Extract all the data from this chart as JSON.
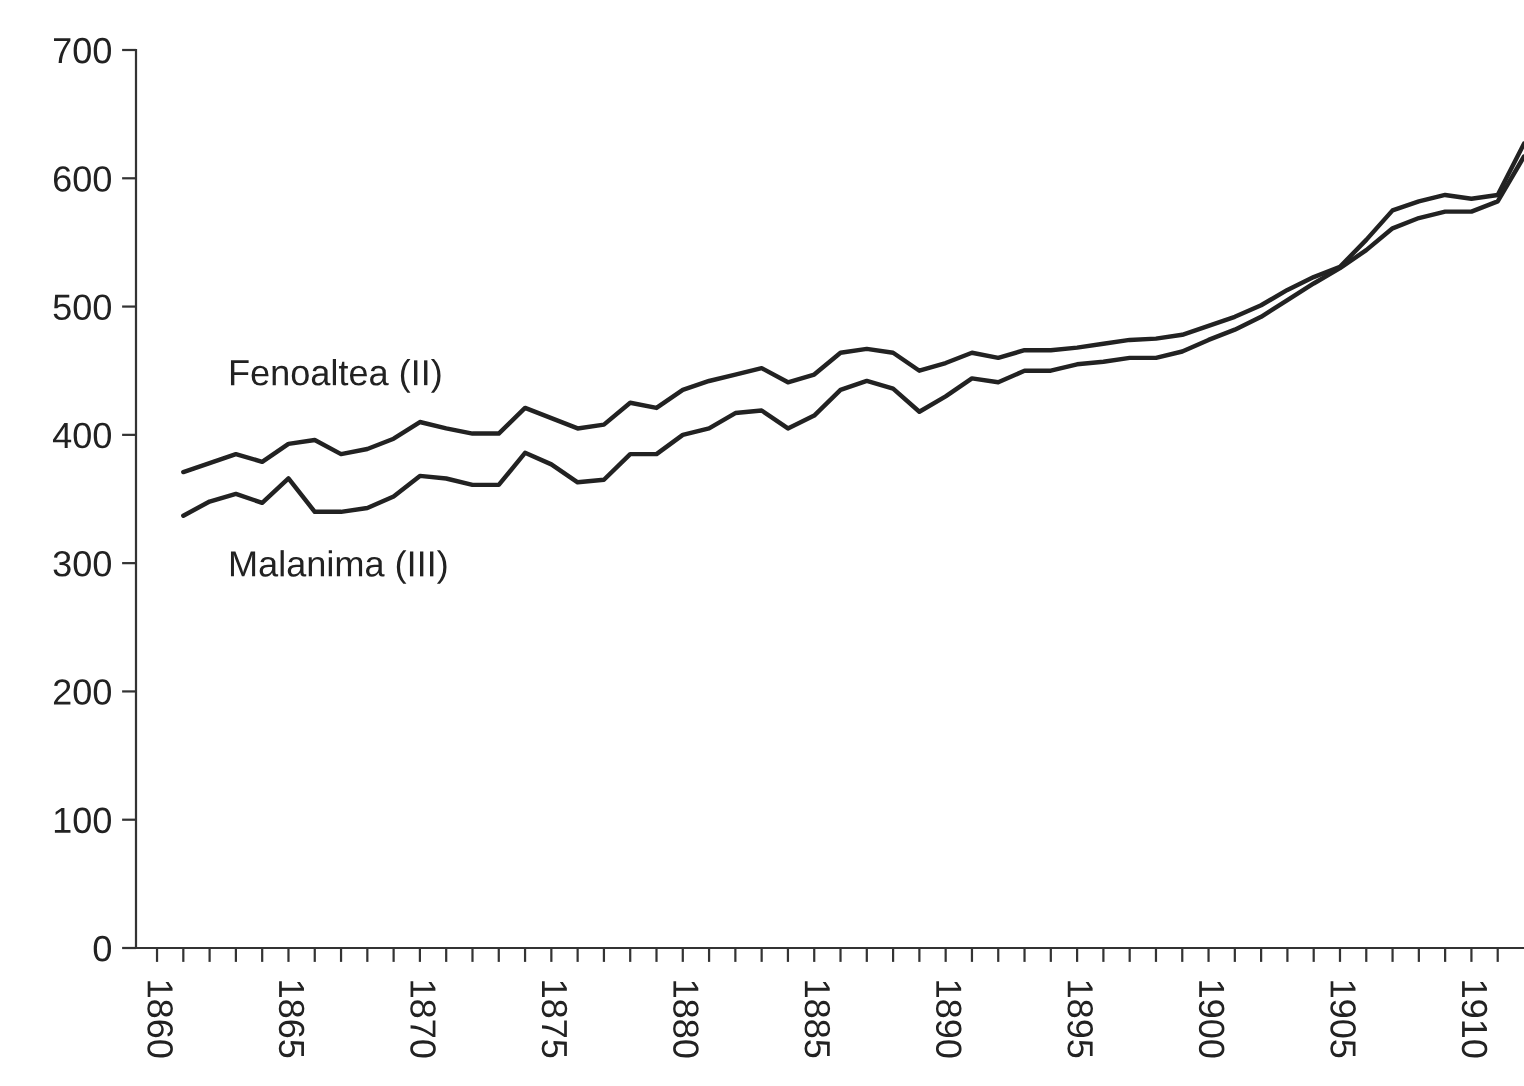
{
  "chart_data": {
    "type": "line",
    "x": [
      1861,
      1862,
      1863,
      1864,
      1865,
      1866,
      1867,
      1868,
      1869,
      1870,
      1871,
      1872,
      1873,
      1874,
      1875,
      1876,
      1877,
      1878,
      1879,
      1880,
      1881,
      1882,
      1883,
      1884,
      1885,
      1886,
      1887,
      1888,
      1889,
      1890,
      1891,
      1892,
      1893,
      1894,
      1895,
      1896,
      1897,
      1898,
      1899,
      1900,
      1901,
      1902,
      1903,
      1904,
      1905,
      1906,
      1907,
      1908,
      1909,
      1910,
      1911,
      1912
    ],
    "series": [
      {
        "name": "Fenoaltea (II)",
        "color": "#222222",
        "values": [
          371,
          378,
          385,
          379,
          393,
          396,
          385,
          389,
          397,
          410,
          405,
          401,
          401,
          421,
          413,
          405,
          408,
          425,
          421,
          435,
          442,
          447,
          452,
          441,
          447,
          464,
          467,
          464,
          450,
          456,
          464,
          460,
          466,
          466,
          468,
          471,
          474,
          475,
          478,
          485,
          492,
          501,
          513,
          523,
          531,
          552,
          575,
          582,
          587,
          584,
          587,
          627
        ]
      },
      {
        "name": "Malanima (III)",
        "color": "#222222",
        "values": [
          337,
          348,
          354,
          347,
          366,
          340,
          340,
          343,
          352,
          368,
          366,
          361,
          361,
          386,
          377,
          363,
          365,
          385,
          385,
          400,
          405,
          417,
          419,
          405,
          415,
          435,
          442,
          436,
          418,
          430,
          444,
          441,
          450,
          450,
          455,
          457,
          460,
          460,
          465,
          474,
          482,
          492,
          505,
          518,
          530,
          544,
          561,
          569,
          574,
          574,
          582,
          617
        ]
      }
    ],
    "xlim": [
      1859.2,
      1912
    ],
    "xticks": [
      1860,
      {
        "value": 1861,
        "label": null
      },
      {
        "value": 1862,
        "label": null
      },
      {
        "value": 1863,
        "label": null
      },
      {
        "value": 1864,
        "label": null
      },
      1865,
      {
        "value": 1866,
        "label": null
      },
      {
        "value": 1867,
        "label": null
      },
      {
        "value": 1868,
        "label": null
      },
      {
        "value": 1869,
        "label": null
      },
      1870,
      {
        "value": 1871,
        "label": null
      },
      {
        "value": 1872,
        "label": null
      },
      {
        "value": 1873,
        "label": null
      },
      {
        "value": 1874,
        "label": null
      },
      1875,
      {
        "value": 1876,
        "label": null
      },
      {
        "value": 1877,
        "label": null
      },
      {
        "value": 1878,
        "label": null
      },
      {
        "value": 1879,
        "label": null
      },
      1880,
      {
        "value": 1881,
        "label": null
      },
      {
        "value": 1882,
        "label": null
      },
      {
        "value": 1883,
        "label": null
      },
      {
        "value": 1884,
        "label": null
      },
      1885,
      {
        "value": 1886,
        "label": null
      },
      {
        "value": 1887,
        "label": null
      },
      {
        "value": 1888,
        "label": null
      },
      {
        "value": 1889,
        "label": null
      },
      1890,
      {
        "value": 1891,
        "label": null
      },
      {
        "value": 1892,
        "label": null
      },
      {
        "value": 1893,
        "label": null
      },
      {
        "value": 1894,
        "label": null
      },
      1895,
      {
        "value": 1896,
        "label": null
      },
      {
        "value": 1897,
        "label": null
      },
      {
        "value": 1898,
        "label": null
      },
      {
        "value": 1899,
        "label": null
      },
      1900,
      {
        "value": 1901,
        "label": null
      },
      {
        "value": 1902,
        "label": null
      },
      {
        "value": 1903,
        "label": null
      },
      {
        "value": 1904,
        "label": null
      },
      1905,
      {
        "value": 1906,
        "label": null
      },
      {
        "value": 1907,
        "label": null
      },
      {
        "value": 1908,
        "label": null
      },
      {
        "value": 1909,
        "label": null
      },
      1910,
      {
        "value": 1911,
        "label": null
      }
    ],
    "ylim": [
      0,
      700
    ],
    "yticks": [
      0,
      100,
      200,
      300,
      400,
      500,
      600,
      700
    ],
    "grid": false,
    "legend": false,
    "line_style": "solid",
    "marker": "none"
  }
}
